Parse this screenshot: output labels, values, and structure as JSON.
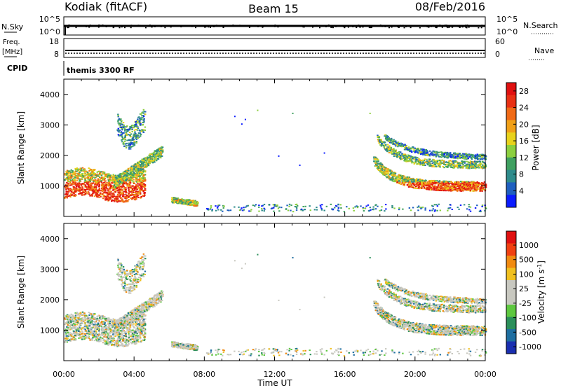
{
  "header": {
    "station": "Kodiak (fitACF)",
    "beam": "Beam 15",
    "date": "08/Feb/2016"
  },
  "status_panels": {
    "nsky_label": "N.Sky",
    "nsearch_label": "N.Search",
    "freq_label_1": "Freq.",
    "freq_label_2": "[MHz]",
    "nave_label": "Nave",
    "cpid_label": "CPID",
    "cpid_value": "themis 3300 RF",
    "nsky_ticks": [
      "10^5",
      "10^0"
    ],
    "nsearch_ticks": [
      "10^5",
      "10^0"
    ],
    "freq_ticks": [
      "18",
      "8"
    ],
    "nave_ticks": [
      "60",
      "0"
    ]
  },
  "chart_data": [
    {
      "type": "heatmap",
      "title": "",
      "xlabel": "",
      "ylabel": "Slant Range [km]",
      "xlim": [
        0,
        24
      ],
      "ylim": [
        0,
        4500
      ],
      "xticks": [
        "00:00",
        "04:00",
        "08:00",
        "12:00",
        "16:00",
        "20:00",
        "00:00"
      ],
      "yticks": [
        "1000",
        "2000",
        "3000",
        "4000"
      ],
      "ytick_values": [
        1000,
        2000,
        3000,
        4000
      ],
      "colorbar": {
        "label": "Power [dB]",
        "ticks": [
          "4",
          "8",
          "12",
          "16",
          "20",
          "24",
          "28"
        ],
        "range": [
          0,
          30
        ],
        "colors": [
          "#0b1cff",
          "#1f5fbf",
          "#2e8b8b",
          "#3fa060",
          "#8ccf3f",
          "#e8d21c",
          "#f0a018",
          "#f06a16",
          "#e83014",
          "#e01010"
        ]
      }
    },
    {
      "type": "heatmap",
      "title": "",
      "xlabel": "Time UT",
      "ylabel": "Slant Range [km]",
      "xlim": [
        0,
        24
      ],
      "ylim": [
        0,
        4500
      ],
      "xticks": [
        "00:00",
        "04:00",
        "08:00",
        "12:00",
        "16:00",
        "20:00",
        "00:00"
      ],
      "yticks": [
        "1000",
        "2000",
        "3000",
        "4000"
      ],
      "ytick_values": [
        1000,
        2000,
        3000,
        4000
      ],
      "colorbar": {
        "label": "Velocity [m s^-1]",
        "ticks": [
          "1000",
          "500",
          "100",
          "25",
          "-25",
          "-100",
          "-500",
          "-1000"
        ],
        "colors": [
          "#1a2fb0",
          "#1e6ea0",
          "#2b8f5a",
          "#5ec840",
          "#c8c8c0",
          "#c8c8c0",
          "#f0c020",
          "#f08a10",
          "#f04010",
          "#e01010"
        ]
      }
    }
  ]
}
